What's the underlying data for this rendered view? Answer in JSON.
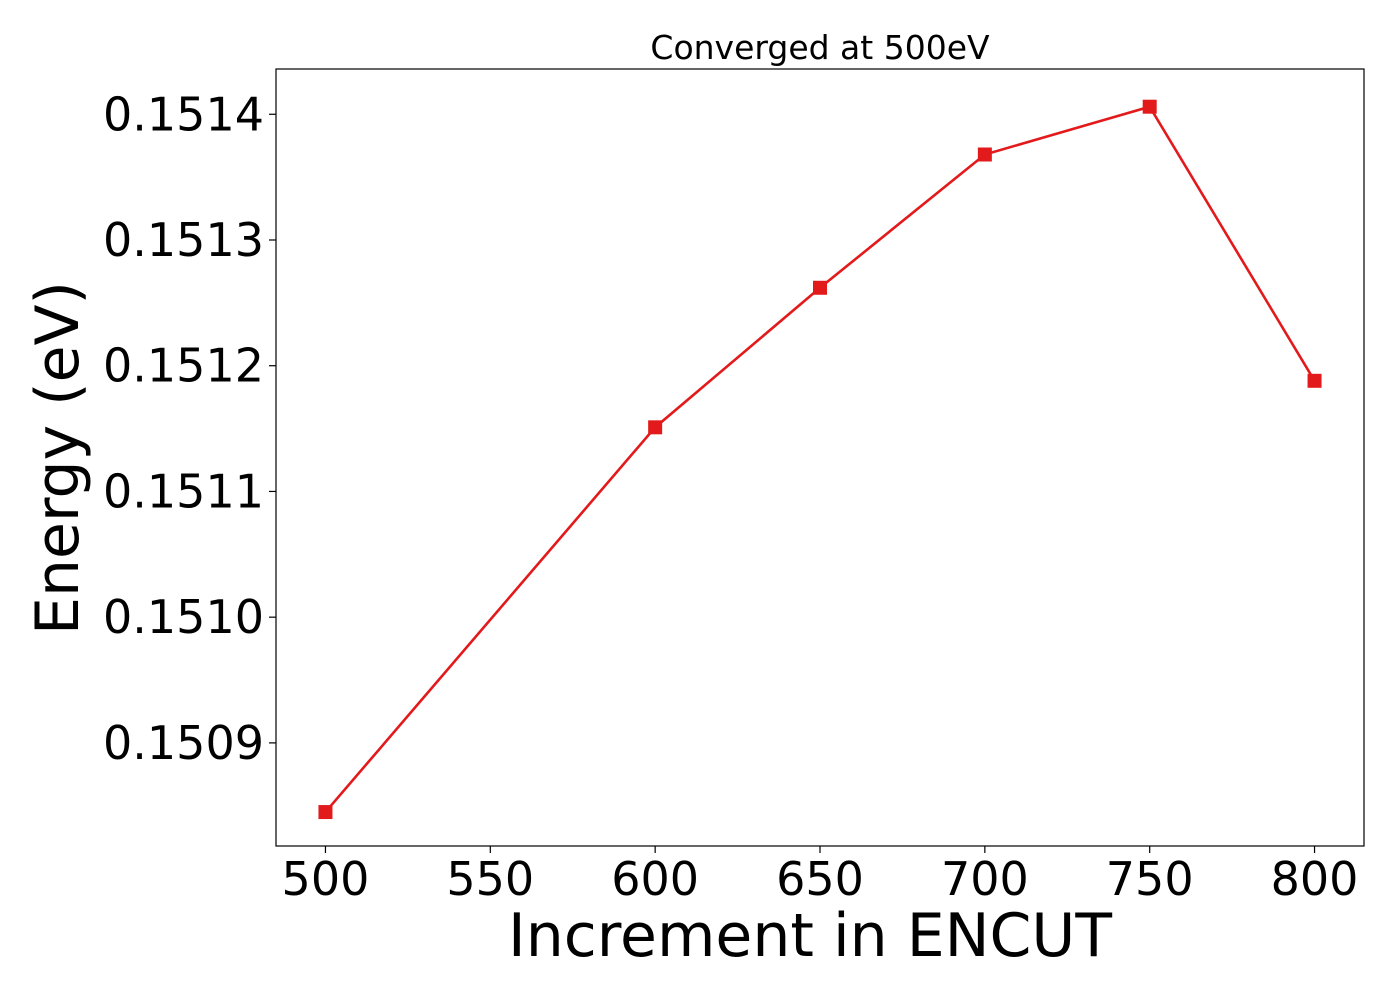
{
  "chart_data": {
    "type": "line",
    "title": "Converged at 500eV",
    "xlabel": "Increment in ENCUT",
    "ylabel": "Energy (eV)",
    "x": [
      500,
      600,
      650,
      700,
      750,
      800
    ],
    "series": [
      {
        "values": [
          0.150845,
          0.151151,
          0.151262,
          0.151368,
          0.151406,
          0.151188
        ],
        "color": "#e31a1c",
        "marker": "square"
      }
    ],
    "xlim": [
      485,
      815
    ],
    "ylim": [
      0.150818,
      0.151436
    ],
    "xticks": [
      500,
      550,
      600,
      650,
      700,
      750,
      800
    ],
    "xtick_labels": [
      "500",
      "550",
      "600",
      "650",
      "700",
      "750",
      "800"
    ],
    "yticks": [
      0.1509,
      0.151,
      0.1511,
      0.1512,
      0.1513,
      0.1514
    ],
    "ytick_labels": [
      "0.1509",
      "0.1510",
      "0.1511",
      "0.1512",
      "0.1513",
      "0.1514"
    ],
    "grid": false,
    "legend": "none"
  }
}
